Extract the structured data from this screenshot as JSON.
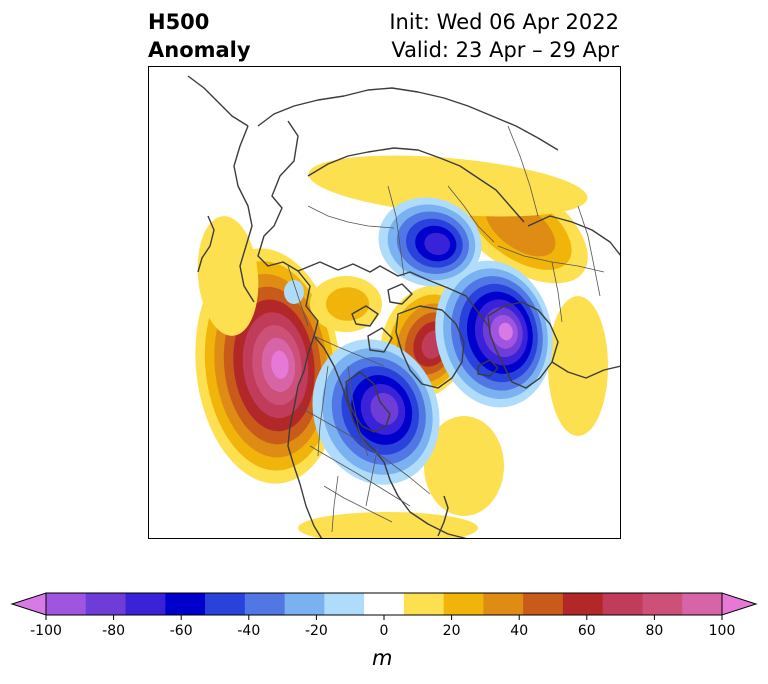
{
  "header": {
    "variable": "H500",
    "product": "Anomaly",
    "init": "Init: Wed 06 Apr 2022",
    "valid": "Valid: 23 Apr – 29 Apr"
  },
  "colorbar": {
    "ticks": [
      "-100",
      "-80",
      "-60",
      "-40",
      "-20",
      "0",
      "20",
      "40",
      "60",
      "80",
      "100"
    ],
    "unit": "m",
    "colors": [
      "#d87ae6",
      "#a055e0",
      "#6e3dd8",
      "#3a22d8",
      "#0000cc",
      "#2a42dc",
      "#5077e4",
      "#7ab1f0",
      "#aedcfa",
      "#ffffff",
      "#fde050",
      "#f0b40a",
      "#de8c14",
      "#c85a1a",
      "#b22828",
      "#c03c5a",
      "#cc5078",
      "#d864a8",
      "#e678d6"
    ]
  },
  "map": {
    "projection": "north-polar-stereographic",
    "features": [
      "coastlines",
      "country-borders",
      "state-province-borders"
    ],
    "anomaly_centers": [
      {
        "region": "Gulf of Alaska",
        "value_m": 80
      },
      {
        "region": "Hudson Bay / central Canada",
        "value_m": -60
      },
      {
        "region": "Greenland",
        "value_m": 60
      },
      {
        "region": "Scandinavia / North Atlantic",
        "value_m": -80
      },
      {
        "region": "Central Siberia",
        "value_m": -60
      },
      {
        "region": "Western Russia",
        "value_m": 40
      },
      {
        "region": "Beaufort Sea",
        "value_m": 20
      },
      {
        "region": "Eastern Pacific",
        "value_m": 20
      },
      {
        "region": "Western Atlantic",
        "value_m": 20
      }
    ]
  }
}
